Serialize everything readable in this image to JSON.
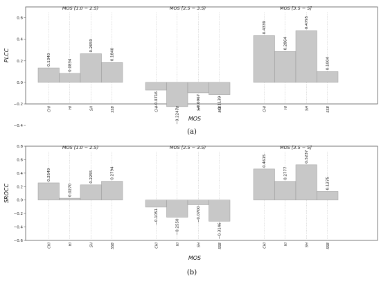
{
  "chart_data": [
    {
      "type": "bar",
      "panel": "(a)",
      "ylabel": "PLCC",
      "xlabel": "MOS",
      "ylim": [
        -0.2,
        0.7
      ],
      "yticks": [
        "0.6",
        "0.4",
        "0.2",
        "0.0",
        "−0.2",
        "−0.4"
      ],
      "categories": [
        "CHI",
        "HI",
        "SH",
        "SSB"
      ],
      "grid": "vertical dotted lines at categories",
      "groups": [
        {
          "title": "MOS [1.0 − 2.5)",
          "values": [
            0.134,
            0.0834,
            0.2659,
            0.184
          ],
          "labels": [
            "0.1340",
            "0.0834",
            "0.2659",
            "0.1840"
          ]
        },
        {
          "title": "MOS [2.5 − 3.5)",
          "values": [
            -0.0716,
            -0.2247,
            -0.0967,
            -0.1139
          ],
          "labels": [
            "−0.0716",
            "−0.2247",
            "−0.0967",
            "−0.1139"
          ]
        },
        {
          "title": "MOS [3.5 − 5]",
          "values": [
            0.4339,
            0.2864,
            0.4795,
            0.1004
          ],
          "labels": [
            "0.4339",
            "0.2864",
            "0.4795",
            "0.1004"
          ]
        }
      ]
    },
    {
      "type": "bar",
      "panel": "(b)",
      "ylabel": "SROCC",
      "xlabel": "MOS",
      "ylim": [
        -0.6,
        0.8
      ],
      "yticks": [
        "0.8",
        "0.6",
        "0.4",
        "0.2",
        "0.0",
        "−0.2",
        "−0.4",
        "−0.6"
      ],
      "categories": [
        "CHI",
        "HI",
        "SH",
        "SSB"
      ],
      "grid": "vertical dotted lines at categories",
      "groups": [
        {
          "title": "MOS [1.0 − 2.5)",
          "values": [
            0.2549,
            0.027,
            0.2255,
            0.2794
          ],
          "labels": [
            "0.2549",
            "0.0270",
            "0.2255",
            "0.2794"
          ]
        },
        {
          "title": "MOS [2.5 − 3.5)",
          "values": [
            -0.1051,
            -0.255,
            -0.07,
            -0.3146
          ],
          "labels": [
            "−0.1051",
            "−0.2550",
            "−0.0700",
            "−0.3146"
          ]
        },
        {
          "title": "MOS [3.5 − 5]",
          "values": [
            0.4615,
            0.2777,
            0.5237,
            0.1275
          ],
          "labels": [
            "0.4615",
            "0.2777",
            "0.5237",
            "0.1275"
          ]
        }
      ]
    }
  ],
  "colors": {
    "bar_fill": "#c8c8c8",
    "bar_stroke": "#9a9a9a",
    "axis": "#555555",
    "grid": "#bbbbbb"
  }
}
